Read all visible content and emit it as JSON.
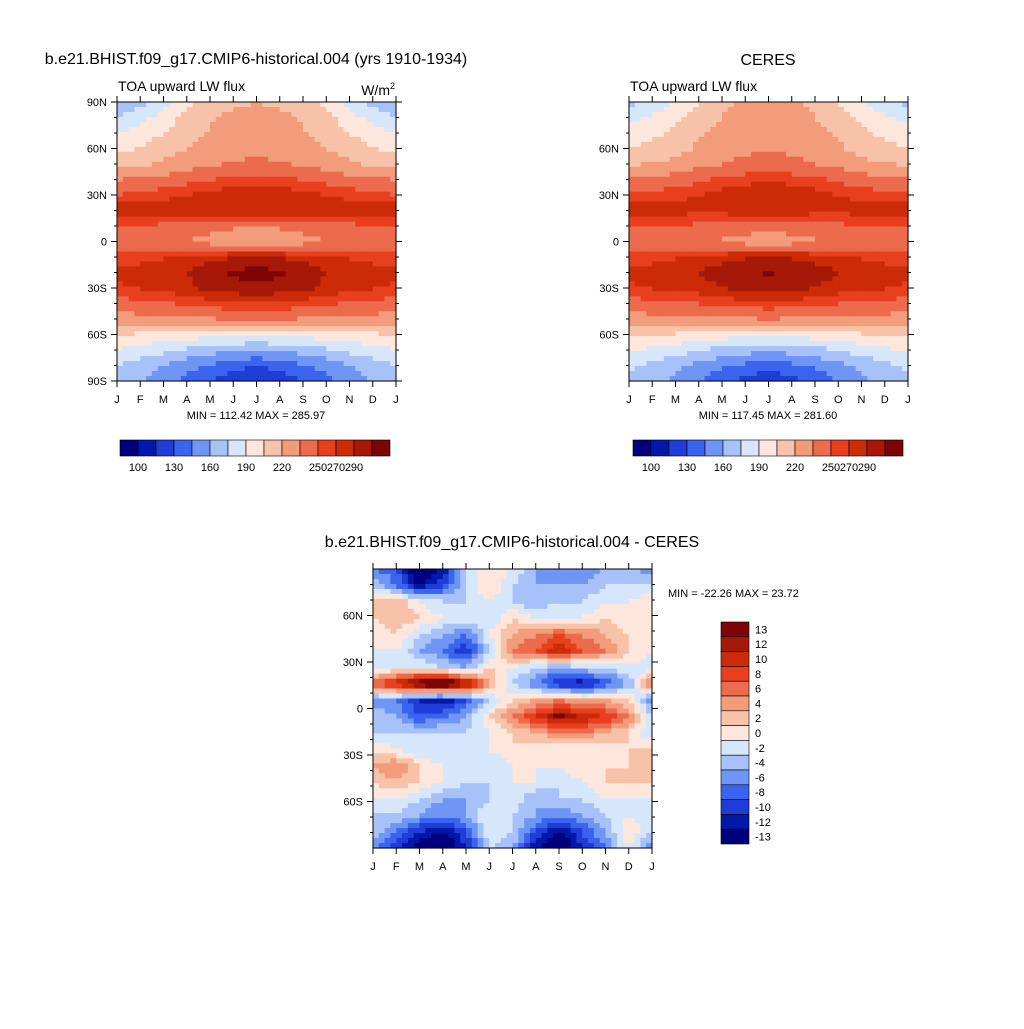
{
  "panels": [
    {
      "id": "model",
      "title": "b.e21.BHIST.f09_g17.CMIP6-historical.004 (yrs 1910-1934)",
      "left_label": "TOA upward LW flux",
      "units_base": "W/m",
      "units_sup": "2",
      "months": [
        "J",
        "F",
        "M",
        "A",
        "M",
        "J",
        "J",
        "A",
        "S",
        "O",
        "N",
        "D",
        "J"
      ],
      "lat_ticks": [
        "90N",
        "60N",
        "30N",
        "0",
        "30S",
        "60S",
        "90S"
      ],
      "minmax": "MIN = 112.42  MAX = 285.97",
      "colorbar_labels": [
        "100",
        "130",
        "160",
        "190",
        "220",
        "250",
        "270",
        "290"
      ]
    },
    {
      "id": "ceres",
      "title": "CERES",
      "left_label": "TOA upward LW flux",
      "months": [
        "J",
        "F",
        "M",
        "A",
        "M",
        "J",
        "J",
        "A",
        "S",
        "O",
        "N",
        "D",
        "J"
      ],
      "lat_ticks": [
        "60N",
        "30N",
        "0",
        "30S",
        "60S"
      ],
      "minmax": "MIN = 117.45  MAX = 281.60",
      "colorbar_labels": [
        "100",
        "130",
        "160",
        "190",
        "220",
        "250",
        "270",
        "290"
      ]
    },
    {
      "id": "diff",
      "title": "b.e21.BHIST.f09_g17.CMIP6-historical.004 - CERES",
      "months": [
        "J",
        "F",
        "M",
        "A",
        "M",
        "J",
        "J",
        "A",
        "S",
        "O",
        "N",
        "D",
        "J"
      ],
      "lat_ticks": [
        "60N",
        "30N",
        "0",
        "30S",
        "60S"
      ],
      "minmax": "MIN = -22.26  MAX =  23.72",
      "colorbar_labels": [
        "13",
        "12",
        "10",
        "8",
        "6",
        "4",
        "2",
        "0",
        "-2",
        "-4",
        "-6",
        "-8",
        "-10",
        "-12",
        "-13"
      ]
    }
  ],
  "colors": {
    "flux_scale": [
      "#00007f",
      "#0019a8",
      "#1f3cd6",
      "#3a63ee",
      "#6f95f5",
      "#a7c2f8",
      "#d6e6fb",
      "#fde7dc",
      "#f8c2a8",
      "#f29c7c",
      "#ec6b4c",
      "#e8401e",
      "#cc2b07",
      "#a61807",
      "#7d0505"
    ],
    "diff_scale": [
      "#7d0505",
      "#a61807",
      "#cc2b07",
      "#e8401e",
      "#ec6b4c",
      "#f29c7c",
      "#f8c2a8",
      "#fde7dc",
      "#d6e6fb",
      "#a7c2f8",
      "#6f95f5",
      "#3a63ee",
      "#1f3cd6",
      "#0019a8",
      "#00007f"
    ]
  },
  "chart_data": [
    {
      "type": "heatmap",
      "title": "b.e21.BHIST.f09_g17.CMIP6-historical.004 (yrs 1910-1934)",
      "xlabel": "",
      "ylabel": "",
      "units": "W/m2",
      "x": [
        "J",
        "F",
        "M",
        "A",
        "M",
        "J",
        "J",
        "A",
        "S",
        "O",
        "N",
        "D",
        "J"
      ],
      "y": [
        90,
        60,
        30,
        0,
        -30,
        -60,
        -90
      ],
      "y_tick_labels": [
        "90N",
        "60N",
        "30N",
        "0",
        "30S",
        "60S",
        "90S"
      ],
      "ylim": [
        -90,
        90
      ],
      "min": 112.42,
      "max": 285.97,
      "levels": [
        100,
        115,
        130,
        145,
        160,
        175,
        190,
        205,
        220,
        235,
        250,
        260,
        270,
        280,
        290
      ],
      "rows_by_latitude": {
        "lat": [
          90,
          80,
          70,
          60,
          50,
          40,
          30,
          20,
          10,
          0,
          -10,
          -20,
          -30,
          -40,
          -50,
          -60,
          -70,
          -80,
          -90
        ],
        "values_by_month_start": [
          [
            160,
            175,
            200,
            215,
            220,
            215,
            200,
            175,
            160
          ],
          [
            175,
            190,
            210,
            222,
            226,
            222,
            210,
            190,
            175
          ],
          [
            190,
            200,
            215,
            225,
            230,
            225,
            215,
            200,
            190
          ],
          [
            200,
            210,
            220,
            228,
            232,
            228,
            220,
            210,
            200
          ],
          [
            215,
            220,
            228,
            235,
            238,
            235,
            228,
            220,
            215
          ],
          [
            235,
            238,
            245,
            252,
            256,
            252,
            245,
            238,
            235
          ],
          [
            250,
            255,
            260,
            265,
            268,
            265,
            260,
            255,
            250
          ],
          [
            270,
            268,
            265,
            268,
            270,
            268,
            265,
            268,
            270
          ],
          [
            250,
            248,
            245,
            240,
            235,
            240,
            245,
            248,
            250
          ],
          [
            240,
            238,
            235,
            225,
            220,
            225,
            235,
            238,
            240
          ],
          [
            255,
            258,
            262,
            268,
            272,
            268,
            262,
            258,
            255
          ],
          [
            262,
            265,
            270,
            280,
            285,
            280,
            270,
            265,
            262
          ],
          [
            258,
            262,
            268,
            275,
            278,
            275,
            268,
            262,
            258
          ],
          [
            245,
            248,
            252,
            258,
            260,
            258,
            252,
            248,
            245
          ],
          [
            228,
            230,
            232,
            235,
            236,
            235,
            232,
            230,
            228
          ],
          [
            205,
            202,
            198,
            195,
            193,
            195,
            198,
            202,
            205
          ],
          [
            190,
            182,
            172,
            165,
            160,
            165,
            172,
            182,
            190
          ],
          [
            175,
            165,
            150,
            140,
            130,
            140,
            150,
            165,
            175
          ],
          [
            170,
            155,
            140,
            125,
            115,
            125,
            140,
            155,
            170
          ]
        ]
      }
    },
    {
      "type": "heatmap",
      "title": "CERES",
      "xlabel": "",
      "ylabel": "",
      "units": "W/m2",
      "x": [
        "J",
        "F",
        "M",
        "A",
        "M",
        "J",
        "J",
        "A",
        "S",
        "O",
        "N",
        "D",
        "J"
      ],
      "y": [
        60,
        30,
        0,
        -30,
        -60
      ],
      "y_tick_labels": [
        "60N",
        "30N",
        "0",
        "30S",
        "60S"
      ],
      "ylim": [
        -90,
        90
      ],
      "min": 117.45,
      "max": 281.6,
      "levels": [
        100,
        115,
        130,
        145,
        160,
        175,
        190,
        205,
        220,
        235,
        250,
        260,
        270,
        280,
        290
      ],
      "rows_by_latitude": {
        "lat": [
          90,
          80,
          70,
          60,
          50,
          40,
          30,
          20,
          10,
          0,
          -10,
          -20,
          -30,
          -40,
          -50,
          -60,
          -70,
          -80,
          -90
        ],
        "values_by_month_start": [
          [
            170,
            185,
            205,
            220,
            225,
            220,
            205,
            185,
            170
          ],
          [
            185,
            195,
            212,
            224,
            228,
            224,
            212,
            195,
            185
          ],
          [
            195,
            205,
            218,
            228,
            232,
            228,
            218,
            205,
            195
          ],
          [
            205,
            212,
            222,
            230,
            234,
            230,
            222,
            212,
            205
          ],
          [
            218,
            222,
            230,
            238,
            241,
            238,
            230,
            222,
            218
          ],
          [
            238,
            240,
            248,
            255,
            258,
            255,
            248,
            240,
            238
          ],
          [
            252,
            256,
            260,
            266,
            270,
            266,
            260,
            256,
            252
          ],
          [
            268,
            266,
            262,
            265,
            268,
            265,
            262,
            266,
            268
          ],
          [
            252,
            250,
            248,
            244,
            240,
            244,
            248,
            250,
            252
          ],
          [
            242,
            240,
            238,
            230,
            226,
            230,
            238,
            240,
            242
          ],
          [
            255,
            258,
            262,
            268,
            270,
            268,
            262,
            258,
            255
          ],
          [
            262,
            265,
            270,
            278,
            281,
            278,
            270,
            265,
            262
          ],
          [
            258,
            262,
            266,
            272,
            275,
            272,
            266,
            262,
            258
          ],
          [
            245,
            248,
            250,
            255,
            258,
            255,
            250,
            248,
            245
          ],
          [
            228,
            230,
            232,
            234,
            235,
            234,
            232,
            230,
            228
          ],
          [
            208,
            205,
            200,
            197,
            195,
            197,
            200,
            205,
            208
          ],
          [
            192,
            185,
            176,
            168,
            163,
            168,
            176,
            185,
            192
          ],
          [
            178,
            168,
            155,
            145,
            135,
            145,
            155,
            168,
            178
          ],
          [
            172,
            160,
            145,
            130,
            120,
            130,
            145,
            160,
            172
          ]
        ]
      }
    },
    {
      "type": "heatmap",
      "title": "b.e21.BHIST.f09_g17.CMIP6-historical.004 - CERES",
      "xlabel": "",
      "ylabel": "",
      "x": [
        "J",
        "F",
        "M",
        "A",
        "M",
        "J",
        "J",
        "A",
        "S",
        "O",
        "N",
        "D",
        "J"
      ],
      "y": [
        60,
        30,
        0,
        -30,
        -60
      ],
      "y_tick_labels": [
        "60N",
        "30N",
        "0",
        "30S",
        "60S"
      ],
      "ylim": [
        -90,
        90
      ],
      "min": -22.26,
      "max": 23.72,
      "levels": [
        13,
        12,
        10,
        8,
        6,
        4,
        2,
        0,
        -2,
        -4,
        -6,
        -8,
        -10,
        -12,
        -13
      ],
      "rows_by_latitude": {
        "lat": [
          85,
          75,
          65,
          55,
          45,
          35,
          25,
          15,
          5,
          -5,
          -15,
          -25,
          -35,
          -45,
          -55,
          -65,
          -75,
          -85
        ],
        "values_by_month_start": [
          [
            -6,
            -8,
            -16,
            -12,
            -2,
            2,
            0,
            -4,
            -6,
            -6,
            -4,
            -2,
            -6
          ],
          [
            -2,
            -6,
            -12,
            -8,
            -2,
            2,
            -2,
            -4,
            -4,
            -4,
            -2,
            -2,
            -2
          ],
          [
            2,
            4,
            0,
            -2,
            -2,
            0,
            -2,
            -4,
            -2,
            -2,
            0,
            0,
            2
          ],
          [
            2,
            4,
            2,
            0,
            0,
            -2,
            2,
            0,
            0,
            0,
            2,
            0,
            2
          ],
          [
            0,
            2,
            -2,
            -4,
            -6,
            0,
            4,
            6,
            8,
            6,
            4,
            2,
            0
          ],
          [
            0,
            0,
            -4,
            -6,
            -10,
            -2,
            6,
            8,
            12,
            8,
            6,
            2,
            0
          ],
          [
            -2,
            0,
            0,
            -2,
            -4,
            2,
            0,
            -2,
            -4,
            -2,
            -2,
            0,
            -2
          ],
          [
            8,
            12,
            16,
            18,
            14,
            4,
            -2,
            -6,
            -10,
            -12,
            -8,
            -4,
            8
          ],
          [
            -6,
            -6,
            -10,
            -12,
            -8,
            -2,
            2,
            4,
            6,
            4,
            4,
            2,
            -6
          ],
          [
            -2,
            -4,
            -8,
            -6,
            -4,
            2,
            6,
            10,
            14,
            12,
            10,
            6,
            -2
          ],
          [
            -2,
            -2,
            -2,
            -2,
            -2,
            0,
            2,
            4,
            6,
            6,
            4,
            2,
            -2
          ],
          [
            2,
            0,
            -2,
            -2,
            -2,
            0,
            2,
            0,
            0,
            0,
            0,
            2,
            2
          ],
          [
            4,
            6,
            2,
            0,
            -2,
            -2,
            0,
            0,
            0,
            2,
            2,
            2,
            4
          ],
          [
            2,
            4,
            2,
            0,
            -2,
            -2,
            0,
            0,
            -2,
            0,
            2,
            2,
            2
          ],
          [
            0,
            0,
            -2,
            -4,
            -4,
            -2,
            0,
            -4,
            -2,
            -2,
            0,
            0,
            0
          ],
          [
            -2,
            -2,
            -4,
            -6,
            -4,
            0,
            -2,
            -4,
            -6,
            -4,
            -2,
            0,
            -2
          ],
          [
            -2,
            -6,
            -10,
            -12,
            -8,
            0,
            -2,
            -8,
            -12,
            -8,
            -4,
            2,
            -2
          ],
          [
            -6,
            -10,
            -14,
            -16,
            -10,
            -2,
            -4,
            -12,
            -16,
            -10,
            -6,
            0,
            -6
          ]
        ]
      }
    }
  ]
}
